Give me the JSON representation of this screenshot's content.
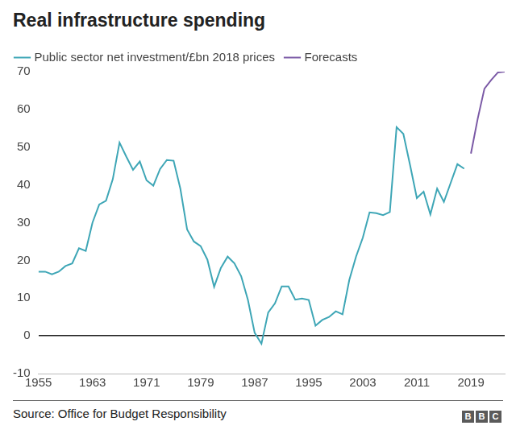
{
  "chart_data": {
    "type": "line",
    "title": "Real infrastructure spending",
    "source": "Source: Office for Budget Responsibility",
    "logo": "BBC",
    "x": [
      1955,
      1956,
      1957,
      1958,
      1959,
      1960,
      1961,
      1962,
      1963,
      1964,
      1965,
      1966,
      1967,
      1968,
      1969,
      1970,
      1971,
      1972,
      1973,
      1974,
      1975,
      1976,
      1977,
      1978,
      1979,
      1980,
      1981,
      1982,
      1983,
      1984,
      1985,
      1986,
      1987,
      1988,
      1989,
      1990,
      1991,
      1992,
      1993,
      1994,
      1995,
      1996,
      1997,
      1998,
      1999,
      2000,
      2001,
      2002,
      2003,
      2004,
      2005,
      2006,
      2007,
      2008,
      2009,
      2010,
      2011,
      2012,
      2013,
      2014,
      2015,
      2016,
      2017,
      2018,
      2019,
      2020,
      2021,
      2022,
      2023,
      2024
    ],
    "series": [
      {
        "name": "Public sector net investment/£bn 2018 prices",
        "color": "#3ea6b6",
        "marker": "none",
        "line_style": "solid",
        "values": [
          17,
          17,
          16.3,
          17,
          18.5,
          19.2,
          23.2,
          22.5,
          30,
          34.8,
          35.8,
          41.5,
          51.2,
          47.5,
          44,
          46.2,
          41.2,
          39.8,
          44.2,
          46.6,
          46.4,
          39,
          28.2,
          25,
          23.8,
          20.2,
          13,
          18,
          21,
          19.2,
          15.8,
          9.5,
          0.8,
          -2.1,
          6.2,
          8.6,
          13.1,
          13.1,
          9.6,
          9.9,
          9.5,
          2.7,
          4.2,
          5,
          6.5,
          5.7,
          14.8,
          21,
          26,
          32.7,
          32.5,
          32,
          32.8,
          55.3,
          53.5,
          45.2,
          36.5,
          38.2,
          32.2,
          39,
          35.5,
          40.5,
          45.5,
          44.3,
          null,
          null,
          null,
          null,
          null,
          null
        ]
      },
      {
        "name": "Forecasts",
        "color": "#7b5aa6",
        "marker": "none",
        "line_style": "solid",
        "values": [
          null,
          null,
          null,
          null,
          null,
          null,
          null,
          null,
          null,
          null,
          null,
          null,
          null,
          null,
          null,
          null,
          null,
          null,
          null,
          null,
          null,
          null,
          null,
          null,
          null,
          null,
          null,
          null,
          null,
          null,
          null,
          null,
          null,
          null,
          null,
          null,
          null,
          null,
          null,
          null,
          null,
          null,
          null,
          null,
          null,
          null,
          null,
          null,
          null,
          null,
          null,
          null,
          null,
          null,
          null,
          null,
          null,
          null,
          null,
          null,
          null,
          null,
          null,
          null,
          48.3,
          57.5,
          65.5,
          67.8,
          69.8,
          70
        ]
      }
    ],
    "xlim": [
      1955,
      2024
    ],
    "xticks": [
      1955,
      1963,
      1971,
      1979,
      1987,
      1995,
      2003,
      2011,
      2019
    ],
    "ylim": [
      -10,
      70
    ],
    "yticks": [
      -10,
      0,
      10,
      20,
      30,
      40,
      50,
      60,
      70
    ],
    "grid": false,
    "legend": "top-left"
  }
}
